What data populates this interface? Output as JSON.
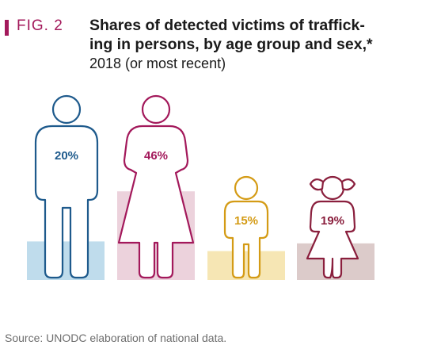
{
  "header": {
    "fig_label": "FIG. 2",
    "title": "Shares of detected victims of traffick-ing in persons, by age group and sex,*",
    "subtitle": "2018 (or most recent)"
  },
  "footer": {
    "source": "Source: UNODC elaboration of national data."
  },
  "chart_data": {
    "type": "bar",
    "title": "Shares of detected victims of trafficking in persons, by age group and sex,*",
    "subtitle": "2018 (or most recent)",
    "categories": [
      "",
      "",
      "",
      ""
    ],
    "values": [
      20,
      46,
      15,
      19
    ],
    "labels": [
      "20%",
      "46%",
      "15%",
      "19%"
    ],
    "icons": [
      "man-icon",
      "woman-icon",
      "boy-icon",
      "girl-icon"
    ],
    "colors": {
      "bar_fills": [
        "#bfdcec",
        "#ecd2dc",
        "#f6e6b4",
        "#dccbca"
      ],
      "strokes": [
        "#1e5a8c",
        "#a3195b",
        "#d49b15",
        "#8a1f3d"
      ],
      "accent": "#a3195b"
    },
    "ylim": [
      0,
      100
    ],
    "grid": false,
    "legend": "none"
  }
}
